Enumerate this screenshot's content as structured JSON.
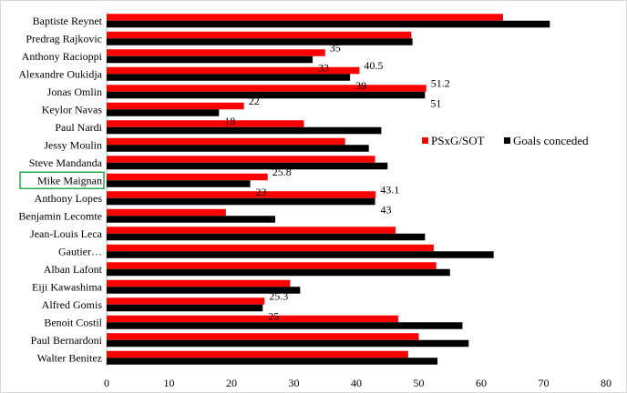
{
  "chart_data": {
    "type": "bar",
    "orientation": "horizontal",
    "categories": [
      "Baptiste Reynet",
      "Predrag Rajkovic",
      "Anthony Racioppi",
      "Alexandre Oukidja",
      "Jonas Omlin",
      "Keylor Navas",
      "Paul Nardi",
      "Jessy Moulin",
      "Steve Mandanda",
      "Mike Maignan",
      "Anthony Lopes",
      "Benjamin Lecomte",
      "Jean-Louis Leca",
      "Gautier…",
      "Alban Lafont",
      "Eiji Kawashima",
      "Alfred Gomis",
      "Benoit Costil",
      "Paul Bernardoni",
      "Walter Benitez"
    ],
    "series": [
      {
        "name": "PSxG/SOT",
        "color": "#ff0000",
        "values": [
          63.5,
          48.8,
          35,
          40.5,
          51.2,
          22,
          31.6,
          38.2,
          43,
          25.8,
          43.1,
          19.1,
          46.3,
          52.4,
          52.8,
          29.4,
          25.3,
          46.7,
          50.0,
          48.3
        ],
        "labels": [
          "",
          "",
          "35",
          "40.5",
          "51.2",
          "22",
          "",
          "",
          "",
          "25.8",
          "43.1",
          "",
          "",
          "",
          "",
          "",
          "25.3",
          "",
          "",
          ""
        ]
      },
      {
        "name": "Goals conceded",
        "color": "#000000",
        "values": [
          71,
          49,
          33,
          39,
          51,
          18,
          44,
          42,
          45,
          23,
          43,
          27,
          51,
          62,
          55,
          31,
          25,
          57,
          58,
          53
        ],
        "labels": [
          "",
          "",
          "33",
          "39",
          "51",
          "18",
          "",
          "",
          "",
          "23",
          "43",
          "",
          "",
          "",
          "",
          "",
          "25",
          "",
          "",
          ""
        ]
      }
    ],
    "highlight_category": "Mike Maignan",
    "xlim": [
      0,
      80
    ],
    "xticks": [
      0,
      10,
      20,
      30,
      40,
      50,
      60,
      70,
      80
    ],
    "title": "",
    "xlabel": "",
    "ylabel": "",
    "grid": false,
    "legend_position": "right"
  }
}
